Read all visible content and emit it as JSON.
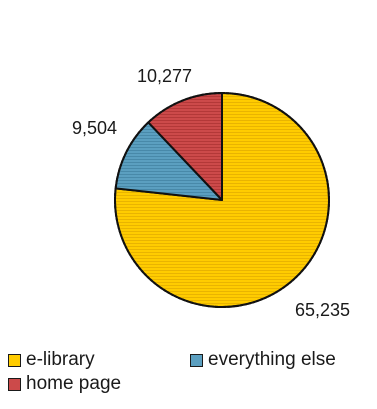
{
  "chart_data": {
    "type": "pie",
    "title": "",
    "start_angle_deg": 0,
    "direction": "clockwise",
    "categories": [
      "e-library",
      "everything else",
      "home page"
    ],
    "values": [
      65235,
      9504,
      10277
    ],
    "data_labels": [
      "65,235",
      "9,504",
      "10,277"
    ],
    "colors": [
      "#ffcc00",
      "#5b9fc0",
      "#cc4a4a"
    ],
    "legend": {
      "placement": "bottom",
      "entries": [
        "e-library",
        "everything else",
        "home page"
      ]
    }
  }
}
